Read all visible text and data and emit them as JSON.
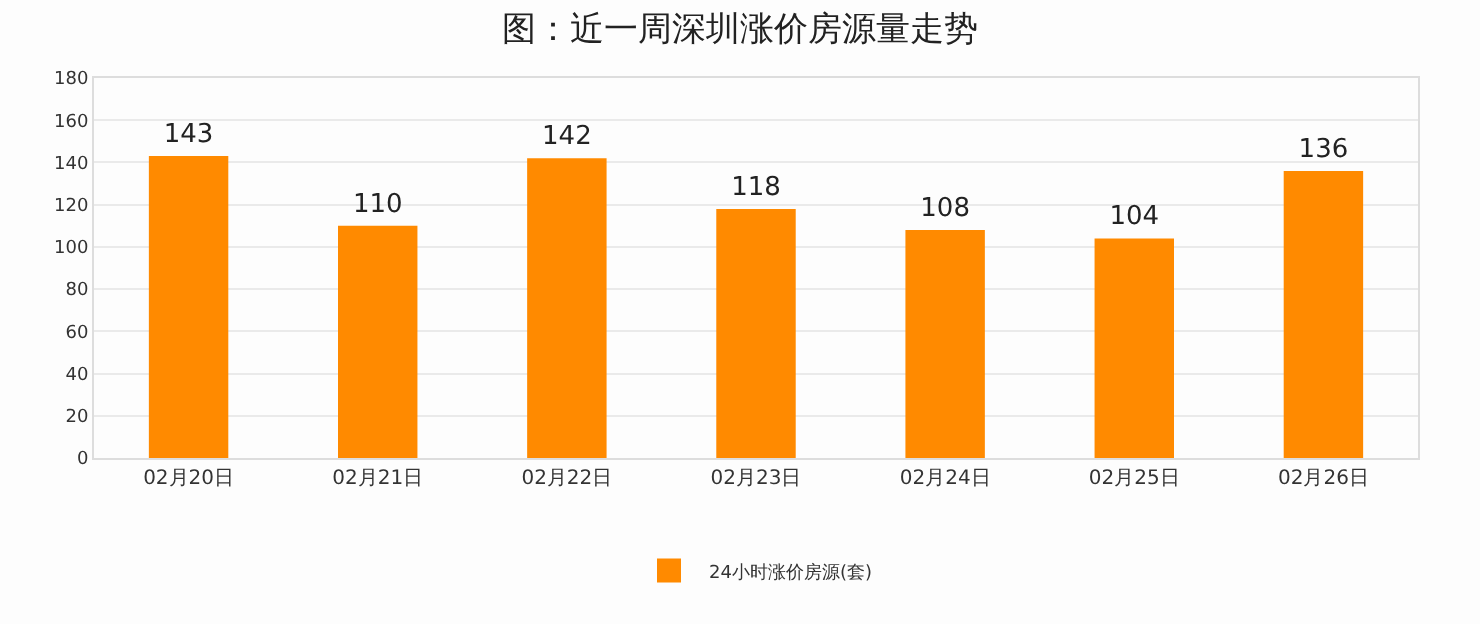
{
  "chart_data": {
    "type": "bar",
    "title": "图：近一周深圳涨价房源量走势",
    "categories": [
      "02月20日",
      "02月21日",
      "02月22日",
      "02月23日",
      "02月24日",
      "02月25日",
      "02月26日"
    ],
    "series": [
      {
        "name": "24小时涨价房源(套)",
        "color": "#ff8a00",
        "values": [
          143,
          110,
          142,
          118,
          108,
          104,
          136
        ]
      }
    ],
    "ylim": [
      0,
      180
    ],
    "yticks": [
      0,
      20,
      40,
      60,
      80,
      100,
      120,
      140,
      160,
      180
    ],
    "grid": "y",
    "legend": "bottom",
    "data_labels": true
  }
}
